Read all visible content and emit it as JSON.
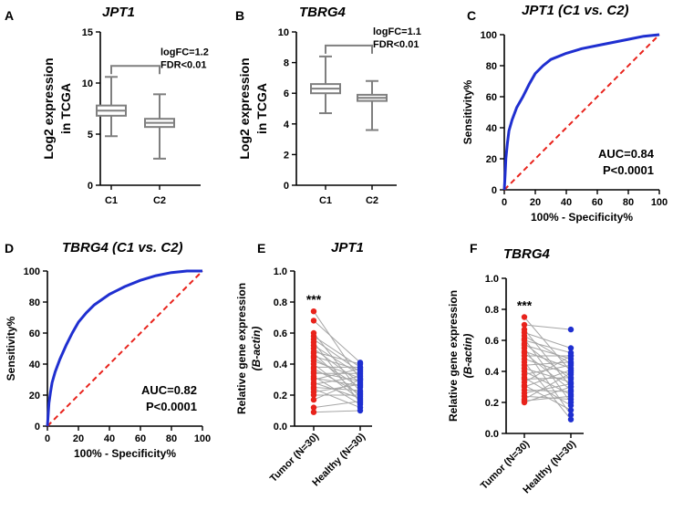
{
  "colors": {
    "axis": "#000000",
    "box": "#7f7f7f",
    "roc_curve": "#1f2fd0",
    "diagonal": "#e8231c",
    "tumor": "#e8231c",
    "healthy": "#1f2fd0",
    "pair_line": "#a6a6a6"
  },
  "chart_data": [
    {
      "id": "A",
      "panel_label": "A",
      "type": "box",
      "title": "JPT1",
      "ylabel_lines": [
        "Log2 expression",
        "in TCGA"
      ],
      "xlabel": "",
      "ylim": [
        0,
        15
      ],
      "yticks": [
        "0",
        "5",
        "10",
        "15"
      ],
      "categories": [
        "C1",
        "C2"
      ],
      "boxes": [
        {
          "name": "C1",
          "min": 4.8,
          "q1": 6.8,
          "median": 7.3,
          "q3": 7.8,
          "max": 10.6
        },
        {
          "name": "C2",
          "min": 2.6,
          "q1": 5.7,
          "median": 6.1,
          "q3": 6.5,
          "max": 8.9
        }
      ],
      "annotation": [
        "logFC=1.2",
        "FDR<0.01"
      ]
    },
    {
      "id": "B",
      "panel_label": "B",
      "type": "box",
      "title": "TBRG4",
      "ylabel_lines": [
        "Log2 expression",
        "in TCGA"
      ],
      "xlabel": "",
      "ylim": [
        0,
        10
      ],
      "yticks": [
        "0",
        "2",
        "4",
        "6",
        "8",
        "10"
      ],
      "categories": [
        "C1",
        "C2"
      ],
      "boxes": [
        {
          "name": "C1",
          "min": 4.7,
          "q1": 6.0,
          "median": 6.3,
          "q3": 6.6,
          "max": 8.4
        },
        {
          "name": "C2",
          "min": 3.6,
          "q1": 5.5,
          "median": 5.7,
          "q3": 5.9,
          "max": 6.8
        }
      ],
      "annotation": [
        "logFC=1.1",
        "FDR<0.01"
      ]
    },
    {
      "id": "C",
      "panel_label": "C",
      "type": "line",
      "title": "JPT1 (C1 vs. C2)",
      "xlabel": "100% - Specificity%",
      "ylabel": "Sensitivity%",
      "xlim": [
        0,
        100
      ],
      "ylim": [
        0,
        100
      ],
      "xticks": [
        "0",
        "20",
        "40",
        "60",
        "80",
        "100"
      ],
      "yticks": [
        "0",
        "20",
        "40",
        "60",
        "80",
        "100"
      ],
      "series": [
        {
          "name": "ROC",
          "x": [
            0,
            0.5,
            1,
            2,
            3,
            5,
            8,
            12,
            16,
            20,
            25,
            30,
            40,
            50,
            60,
            70,
            80,
            90,
            100
          ],
          "y": [
            0,
            10,
            20,
            30,
            38,
            45,
            53,
            60,
            68,
            75,
            80,
            84,
            88,
            91,
            93,
            95,
            97,
            99,
            100
          ]
        },
        {
          "name": "Reference",
          "x": [
            0,
            100
          ],
          "y": [
            0,
            100
          ]
        }
      ],
      "annotation": [
        "AUC=0.84",
        "P<0.0001"
      ]
    },
    {
      "id": "D",
      "panel_label": "D",
      "type": "line",
      "title": "TBRG4 (C1 vs. C2)",
      "xlabel": "100% - Specificity%",
      "ylabel": "Sensitivity%",
      "xlim": [
        0,
        100
      ],
      "ylim": [
        0,
        100
      ],
      "xticks": [
        "0",
        "20",
        "40",
        "60",
        "80",
        "100"
      ],
      "yticks": [
        "0",
        "20",
        "40",
        "60",
        "80",
        "100"
      ],
      "series": [
        {
          "name": "ROC",
          "x": [
            0,
            0.5,
            1,
            2,
            3,
            5,
            8,
            12,
            16,
            20,
            25,
            30,
            40,
            50,
            60,
            70,
            80,
            90,
            100
          ],
          "y": [
            0,
            8,
            15,
            22,
            28,
            35,
            43,
            52,
            60,
            67,
            73,
            78,
            85,
            90,
            94,
            97,
            99,
            100,
            100
          ]
        },
        {
          "name": "Reference",
          "x": [
            0,
            100
          ],
          "y": [
            0,
            100
          ]
        }
      ],
      "annotation": [
        "AUC=0.82",
        "P<0.0001"
      ]
    },
    {
      "id": "E",
      "panel_label": "E",
      "type": "scatter",
      "title": "JPT1",
      "ylabel_lines": [
        "Relative gene expression",
        "(B-actin)"
      ],
      "ylim": [
        0,
        1.0
      ],
      "yticks": [
        "0.0",
        "0.2",
        "0.4",
        "0.6",
        "0.8",
        "1.0"
      ],
      "categories": [
        "Tumor (N=30)",
        "Healthy (N=30)"
      ],
      "significance": "***",
      "pairs": {
        "tumor": [
          0.74,
          0.68,
          0.6,
          0.58,
          0.56,
          0.54,
          0.52,
          0.5,
          0.48,
          0.47,
          0.45,
          0.44,
          0.42,
          0.4,
          0.38,
          0.37,
          0.35,
          0.34,
          0.32,
          0.31,
          0.3,
          0.28,
          0.27,
          0.25,
          0.24,
          0.22,
          0.2,
          0.17,
          0.12,
          0.09
        ],
        "healthy": [
          0.3,
          0.41,
          0.22,
          0.38,
          0.35,
          0.15,
          0.33,
          0.28,
          0.4,
          0.19,
          0.36,
          0.25,
          0.31,
          0.17,
          0.38,
          0.21,
          0.29,
          0.34,
          0.14,
          0.26,
          0.37,
          0.18,
          0.32,
          0.23,
          0.12,
          0.27,
          0.2,
          0.3,
          0.16,
          0.1
        ]
      }
    },
    {
      "id": "F",
      "panel_label": "F",
      "type": "scatter",
      "title": "TBRG4",
      "ylabel_lines": [
        "Relative gene expression",
        "(B-actin)"
      ],
      "ylim": [
        0,
        1.0
      ],
      "yticks": [
        "0.0",
        "0.2",
        "0.4",
        "0.6",
        "0.8",
        "1.0"
      ],
      "categories": [
        "Tumor (N=30)",
        "Healthy (N=30)"
      ],
      "significance": "***",
      "pairs": {
        "tumor": [
          0.75,
          0.7,
          0.67,
          0.65,
          0.63,
          0.61,
          0.6,
          0.58,
          0.57,
          0.55,
          0.53,
          0.52,
          0.5,
          0.48,
          0.46,
          0.44,
          0.42,
          0.4,
          0.38,
          0.36,
          0.35,
          0.33,
          0.31,
          0.3,
          0.28,
          0.26,
          0.24,
          0.22,
          0.21,
          0.2
        ],
        "healthy": [
          0.4,
          0.67,
          0.3,
          0.55,
          0.45,
          0.2,
          0.52,
          0.35,
          0.48,
          0.12,
          0.42,
          0.28,
          0.5,
          0.38,
          0.09,
          0.46,
          0.33,
          0.25,
          0.44,
          0.18,
          0.36,
          0.5,
          0.15,
          0.41,
          0.27,
          0.32,
          0.22,
          0.39,
          0.24,
          0.3
        ]
      }
    }
  ]
}
